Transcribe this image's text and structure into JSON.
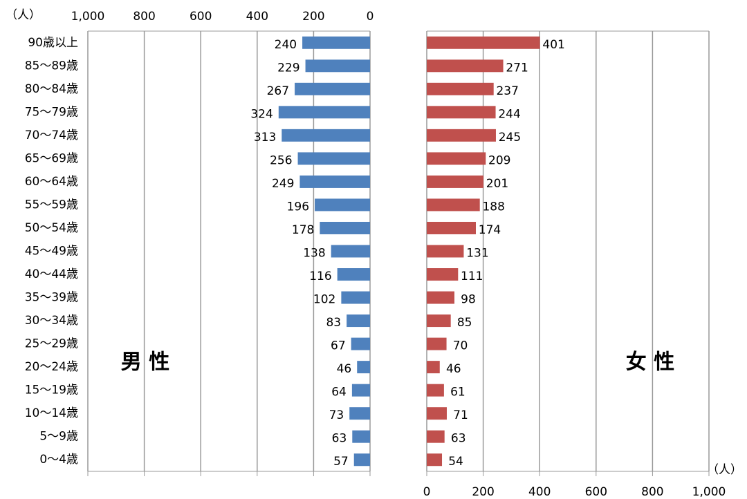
{
  "chart_data": {
    "type": "pyramid",
    "unit": "（人）",
    "categories": [
      "90歳以上",
      "85〜89歳",
      "80〜84歳",
      "75〜79歳",
      "70〜74歳",
      "65〜69歳",
      "60〜64歳",
      "55〜59歳",
      "50〜54歳",
      "45〜49歳",
      "40〜44歳",
      "35〜39歳",
      "30〜34歳",
      "25〜29歳",
      "20〜24歳",
      "15〜19歳",
      "10〜14歳",
      "5〜9歳",
      "0〜4歳"
    ],
    "series": [
      {
        "name": "男 性",
        "color": "#4f81bd",
        "label_color": "#2f5f94",
        "values": [
          240,
          229,
          267,
          324,
          313,
          256,
          249,
          196,
          178,
          138,
          116,
          102,
          83,
          67,
          46,
          64,
          73,
          63,
          57
        ]
      },
      {
        "name": "女 性",
        "color": "#c0504d",
        "label_color": "#c0504d",
        "values": [
          401,
          271,
          237,
          244,
          245,
          209,
          201,
          188,
          174,
          131,
          111,
          98,
          85,
          70,
          46,
          61,
          71,
          63,
          54
        ]
      }
    ],
    "xlim": [
      0,
      1000
    ],
    "xticks": [
      0,
      200,
      400,
      600,
      800,
      {
        "value": 1000,
        "label": "1,000"
      }
    ],
    "grid": true
  }
}
